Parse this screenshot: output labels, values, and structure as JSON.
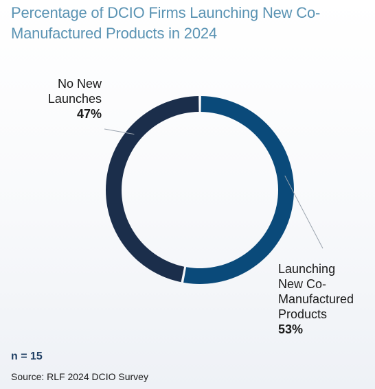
{
  "header": {
    "title": "Percentage of DCIO Firms Launching New Co-Manufactured Products in 2024"
  },
  "chart_data": {
    "type": "pie",
    "donut": true,
    "slices": [
      {
        "label_lines": [
          "Launching",
          "New Co-",
          "Manufactured",
          "Products"
        ],
        "value": 53,
        "percent_label": "53%",
        "color": "#0a4a7a"
      },
      {
        "label_lines": [
          "No New",
          "Launches"
        ],
        "value": 47,
        "percent_label": "47%",
        "color": "#1b2e4b"
      }
    ],
    "legend": "none",
    "leader_line_color": "#9aa3ad"
  },
  "footer": {
    "n_label": "n = 15",
    "source": "Source: RLF 2024 DCIO Survey"
  }
}
